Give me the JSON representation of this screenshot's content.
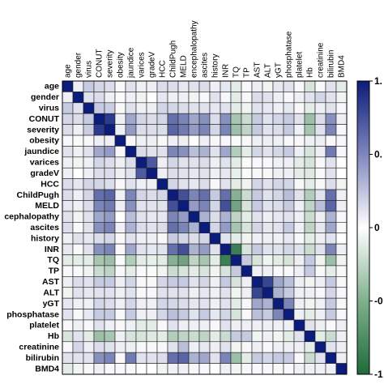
{
  "chart_data": {
    "type": "heatmap",
    "title": "",
    "variables": [
      "age",
      "gender",
      "virus",
      "CONUT",
      "severity",
      "obesity",
      "jaundice",
      "varices",
      "gradeV",
      "HCC",
      "ChildPugh",
      "MELD",
      "encephalopathy",
      "ascites",
      "history",
      "INR",
      "TQ",
      "TP",
      "AST",
      "ALT",
      "yGT",
      "phosphatase",
      "platelet",
      "Hb",
      "creatinine",
      "bilirubin",
      "BMD4"
    ],
    "row_labels": [
      "age",
      "gender",
      "virus",
      "CONUT",
      "severity",
      "obesity",
      "jaundice",
      "varices",
      "gradeV",
      "HCC",
      "ChildPugh",
      "MELD",
      "cephalopathy",
      "ascites",
      "history",
      "INR",
      "TQ",
      "TP",
      "AST",
      "ALT",
      "yGT",
      "phosphatase",
      "platelet",
      "Hb",
      "creatinine",
      "bilirubin",
      "BMD4"
    ],
    "col_labels": [
      "age",
      "gender",
      "virus",
      "CONUT",
      "severity",
      "obesity",
      "jaundice",
      "varices",
      "gradeV",
      "HCC",
      "ChildPugh",
      "MELD",
      "encephalopathy",
      "ascites",
      "history",
      "INR",
      "TQ",
      "TP",
      "AST",
      "ALT",
      "yGT",
      "phosphatase",
      "platelet",
      "Hb",
      "creatinine",
      "bilirubin",
      "BMD4"
    ],
    "colorbar": {
      "range": [
        -1,
        1
      ],
      "tick_labels": [
        "1.",
        "0.",
        "0",
        "-0",
        "-1"
      ],
      "colors": {
        "negative": "#1f6b3a",
        "zero": "#ffffff",
        "positive": "#0b1c7a"
      }
    },
    "values": [
      [
        1.0,
        0.05,
        0.2,
        0.15,
        0.12,
        0.02,
        0.1,
        0.05,
        0.05,
        0.12,
        0.12,
        0.08,
        0.1,
        0.12,
        0.05,
        0.08,
        -0.1,
        0.02,
        0.05,
        -0.05,
        0.08,
        0.1,
        0.02,
        -0.15,
        0.02,
        0.1,
        -0.1
      ],
      [
        0.05,
        1.0,
        0.1,
        0.12,
        0.05,
        -0.02,
        0.05,
        -0.05,
        0.0,
        0.08,
        0.05,
        0.05,
        -0.05,
        0.02,
        0.1,
        0.02,
        -0.1,
        0.02,
        0.12,
        0.1,
        0.05,
        0.02,
        0.05,
        0.1,
        0.15,
        0.1,
        -0.05
      ],
      [
        0.2,
        0.1,
        1.0,
        0.2,
        0.18,
        0.02,
        0.1,
        0.05,
        0.05,
        0.15,
        0.15,
        0.12,
        0.1,
        0.1,
        0.08,
        0.1,
        -0.1,
        -0.05,
        0.1,
        0.08,
        0.05,
        0.08,
        0.02,
        -0.1,
        0.05,
        0.1,
        0.02
      ],
      [
        0.15,
        0.12,
        0.2,
        1.0,
        0.85,
        0.05,
        0.35,
        0.15,
        0.12,
        0.15,
        0.6,
        0.5,
        0.35,
        0.45,
        0.12,
        0.45,
        -0.35,
        -0.2,
        0.2,
        0.1,
        0.15,
        0.2,
        0.1,
        -0.4,
        0.12,
        0.45,
        0.05
      ],
      [
        0.12,
        0.05,
        0.18,
        0.85,
        1.0,
        0.05,
        0.4,
        0.12,
        0.12,
        0.12,
        0.65,
        0.55,
        0.4,
        0.5,
        0.15,
        0.5,
        -0.4,
        -0.25,
        0.2,
        0.1,
        0.12,
        0.2,
        0.05,
        -0.35,
        0.1,
        0.5,
        0.02
      ],
      [
        0.02,
        -0.02,
        0.02,
        0.05,
        0.05,
        1.0,
        0.02,
        0.05,
        0.05,
        0.02,
        0.05,
        0.05,
        0.0,
        0.05,
        0.02,
        0.02,
        -0.02,
        0.02,
        0.05,
        0.05,
        0.05,
        0.02,
        0.02,
        0.05,
        0.05,
        0.02,
        0.02
      ],
      [
        0.1,
        0.05,
        0.1,
        0.35,
        0.4,
        0.02,
        1.0,
        0.12,
        0.1,
        0.1,
        0.5,
        0.45,
        0.25,
        0.3,
        0.1,
        0.35,
        -0.3,
        -0.1,
        0.15,
        0.1,
        0.15,
        0.2,
        0.05,
        -0.15,
        0.05,
        0.55,
        0.02
      ],
      [
        0.05,
        -0.05,
        0.05,
        0.15,
        0.12,
        0.05,
        0.12,
        1.0,
        0.7,
        0.05,
        0.15,
        0.1,
        0.1,
        0.12,
        0.05,
        0.1,
        -0.1,
        -0.02,
        0.02,
        0.02,
        0.05,
        0.05,
        -0.1,
        -0.15,
        0.02,
        0.1,
        0.0
      ],
      [
        0.05,
        0.0,
        0.05,
        0.12,
        0.12,
        0.05,
        0.1,
        0.7,
        1.0,
        0.05,
        0.12,
        0.1,
        0.08,
        0.1,
        0.05,
        0.08,
        -0.08,
        -0.02,
        0.02,
        0.02,
        0.05,
        0.05,
        -0.1,
        -0.12,
        0.02,
        0.1,
        0.0
      ],
      [
        0.12,
        0.08,
        0.15,
        0.15,
        0.12,
        0.02,
        0.1,
        0.05,
        0.05,
        1.0,
        0.15,
        0.1,
        0.08,
        0.12,
        0.02,
        0.1,
        -0.1,
        -0.05,
        0.15,
        0.1,
        0.15,
        0.15,
        0.02,
        -0.1,
        0.02,
        0.12,
        -0.05
      ],
      [
        0.12,
        0.05,
        0.15,
        0.6,
        0.65,
        0.05,
        0.5,
        0.15,
        0.12,
        0.15,
        1.0,
        0.75,
        0.5,
        0.6,
        0.2,
        0.6,
        -0.5,
        -0.2,
        0.2,
        0.1,
        0.15,
        0.25,
        0.1,
        -0.3,
        0.1,
        0.6,
        0.05
      ],
      [
        0.08,
        0.05,
        0.12,
        0.5,
        0.55,
        0.05,
        0.45,
        0.1,
        0.1,
        0.1,
        0.75,
        1.0,
        0.4,
        0.5,
        0.15,
        0.75,
        -0.6,
        -0.15,
        0.2,
        0.1,
        0.12,
        0.2,
        0.05,
        -0.25,
        0.25,
        0.65,
        0.05
      ],
      [
        0.1,
        -0.05,
        0.1,
        0.35,
        0.4,
        0.0,
        0.25,
        0.1,
        0.08,
        0.08,
        0.5,
        0.4,
        1.0,
        0.3,
        0.12,
        0.3,
        -0.25,
        -0.1,
        0.1,
        0.05,
        0.08,
        0.1,
        0.05,
        -0.2,
        0.05,
        0.3,
        0.02
      ],
      [
        0.12,
        0.02,
        0.1,
        0.45,
        0.5,
        0.05,
        0.3,
        0.12,
        0.1,
        0.12,
        0.6,
        0.5,
        0.3,
        1.0,
        0.15,
        0.4,
        -0.35,
        -0.15,
        0.15,
        0.08,
        0.1,
        0.2,
        0.05,
        -0.25,
        0.08,
        0.35,
        0.02
      ],
      [
        0.05,
        0.1,
        0.08,
        0.12,
        0.15,
        0.02,
        0.1,
        0.05,
        0.05,
        0.02,
        0.2,
        0.15,
        0.12,
        0.15,
        1.0,
        0.1,
        -0.1,
        -0.05,
        0.05,
        0.05,
        0.05,
        0.08,
        0.02,
        -0.1,
        0.05,
        0.1,
        0.0
      ],
      [
        0.08,
        0.02,
        0.1,
        0.45,
        0.5,
        0.02,
        0.35,
        0.1,
        0.08,
        0.1,
        0.6,
        0.75,
        0.3,
        0.4,
        0.1,
        1.0,
        -0.85,
        -0.15,
        0.2,
        0.1,
        0.1,
        0.15,
        0.1,
        -0.2,
        0.1,
        0.5,
        0.05
      ],
      [
        -0.1,
        -0.1,
        -0.1,
        -0.35,
        -0.4,
        -0.02,
        -0.3,
        -0.1,
        -0.08,
        -0.1,
        -0.5,
        -0.6,
        -0.25,
        -0.35,
        -0.1,
        -0.85,
        1.0,
        0.2,
        -0.15,
        -0.05,
        -0.1,
        -0.15,
        0.05,
        0.2,
        -0.05,
        -0.4,
        -0.05
      ],
      [
        0.02,
        0.02,
        -0.05,
        -0.2,
        -0.25,
        0.02,
        -0.1,
        -0.02,
        -0.02,
        -0.05,
        -0.2,
        -0.15,
        -0.1,
        -0.15,
        -0.05,
        -0.15,
        0.2,
        1.0,
        0.05,
        0.05,
        0.02,
        0.02,
        0.05,
        0.2,
        0.02,
        -0.1,
        0.02
      ],
      [
        0.05,
        0.12,
        0.1,
        0.2,
        0.2,
        0.05,
        0.15,
        0.02,
        0.02,
        0.15,
        0.2,
        0.2,
        0.1,
        0.15,
        0.05,
        0.2,
        -0.15,
        0.05,
        1.0,
        0.8,
        0.35,
        0.25,
        0.05,
        -0.05,
        0.05,
        0.2,
        0.02
      ],
      [
        -0.05,
        0.1,
        0.08,
        0.1,
        0.1,
        0.05,
        0.1,
        0.02,
        0.02,
        0.1,
        0.1,
        0.1,
        0.05,
        0.08,
        0.05,
        0.1,
        -0.05,
        0.05,
        0.8,
        1.0,
        0.3,
        0.2,
        0.05,
        0.05,
        0.02,
        0.15,
        0.02
      ],
      [
        0.08,
        0.05,
        0.05,
        0.15,
        0.12,
        0.05,
        0.15,
        0.05,
        0.05,
        0.15,
        0.15,
        0.12,
        0.08,
        0.1,
        0.05,
        0.1,
        -0.1,
        0.02,
        0.35,
        0.3,
        1.0,
        0.5,
        0.05,
        -0.05,
        0.05,
        0.2,
        0.02
      ],
      [
        0.1,
        0.02,
        0.08,
        0.2,
        0.2,
        0.02,
        0.2,
        0.05,
        0.05,
        0.15,
        0.25,
        0.2,
        0.1,
        0.2,
        0.08,
        0.15,
        -0.15,
        0.02,
        0.25,
        0.2,
        0.5,
        1.0,
        0.05,
        -0.1,
        0.05,
        0.2,
        0.02
      ],
      [
        0.02,
        0.05,
        0.02,
        0.1,
        0.05,
        0.02,
        0.05,
        -0.1,
        -0.1,
        0.02,
        0.1,
        0.05,
        0.05,
        0.05,
        0.02,
        0.1,
        0.05,
        0.05,
        0.05,
        0.05,
        0.05,
        0.05,
        1.0,
        0.1,
        0.05,
        0.02,
        0.05
      ],
      [
        -0.15,
        0.1,
        -0.1,
        -0.4,
        -0.35,
        0.05,
        -0.15,
        -0.15,
        -0.12,
        -0.1,
        -0.3,
        -0.25,
        -0.2,
        -0.25,
        -0.1,
        -0.2,
        0.2,
        0.2,
        -0.05,
        0.05,
        -0.05,
        -0.1,
        0.1,
        1.0,
        -0.1,
        -0.2,
        0.05
      ],
      [
        0.02,
        0.15,
        0.05,
        0.12,
        0.1,
        0.05,
        0.05,
        0.02,
        0.02,
        0.02,
        0.1,
        0.25,
        0.05,
        0.08,
        0.05,
        0.1,
        -0.05,
        0.02,
        0.05,
        0.02,
        0.05,
        0.05,
        0.05,
        -0.1,
        1.0,
        0.1,
        0.05
      ],
      [
        0.1,
        0.1,
        0.1,
        0.45,
        0.5,
        0.02,
        0.55,
        0.1,
        0.1,
        0.12,
        0.6,
        0.65,
        0.3,
        0.35,
        0.1,
        0.5,
        -0.4,
        -0.1,
        0.2,
        0.15,
        0.2,
        0.2,
        0.02,
        -0.2,
        0.1,
        1.0,
        0.05
      ],
      [
        -0.1,
        -0.05,
        0.02,
        0.05,
        0.02,
        0.02,
        0.02,
        0.0,
        0.0,
        -0.05,
        0.05,
        0.05,
        0.02,
        0.02,
        0.0,
        0.05,
        -0.05,
        0.02,
        0.02,
        0.02,
        0.02,
        0.02,
        0.05,
        0.05,
        0.05,
        0.05,
        1.0
      ]
    ]
  }
}
